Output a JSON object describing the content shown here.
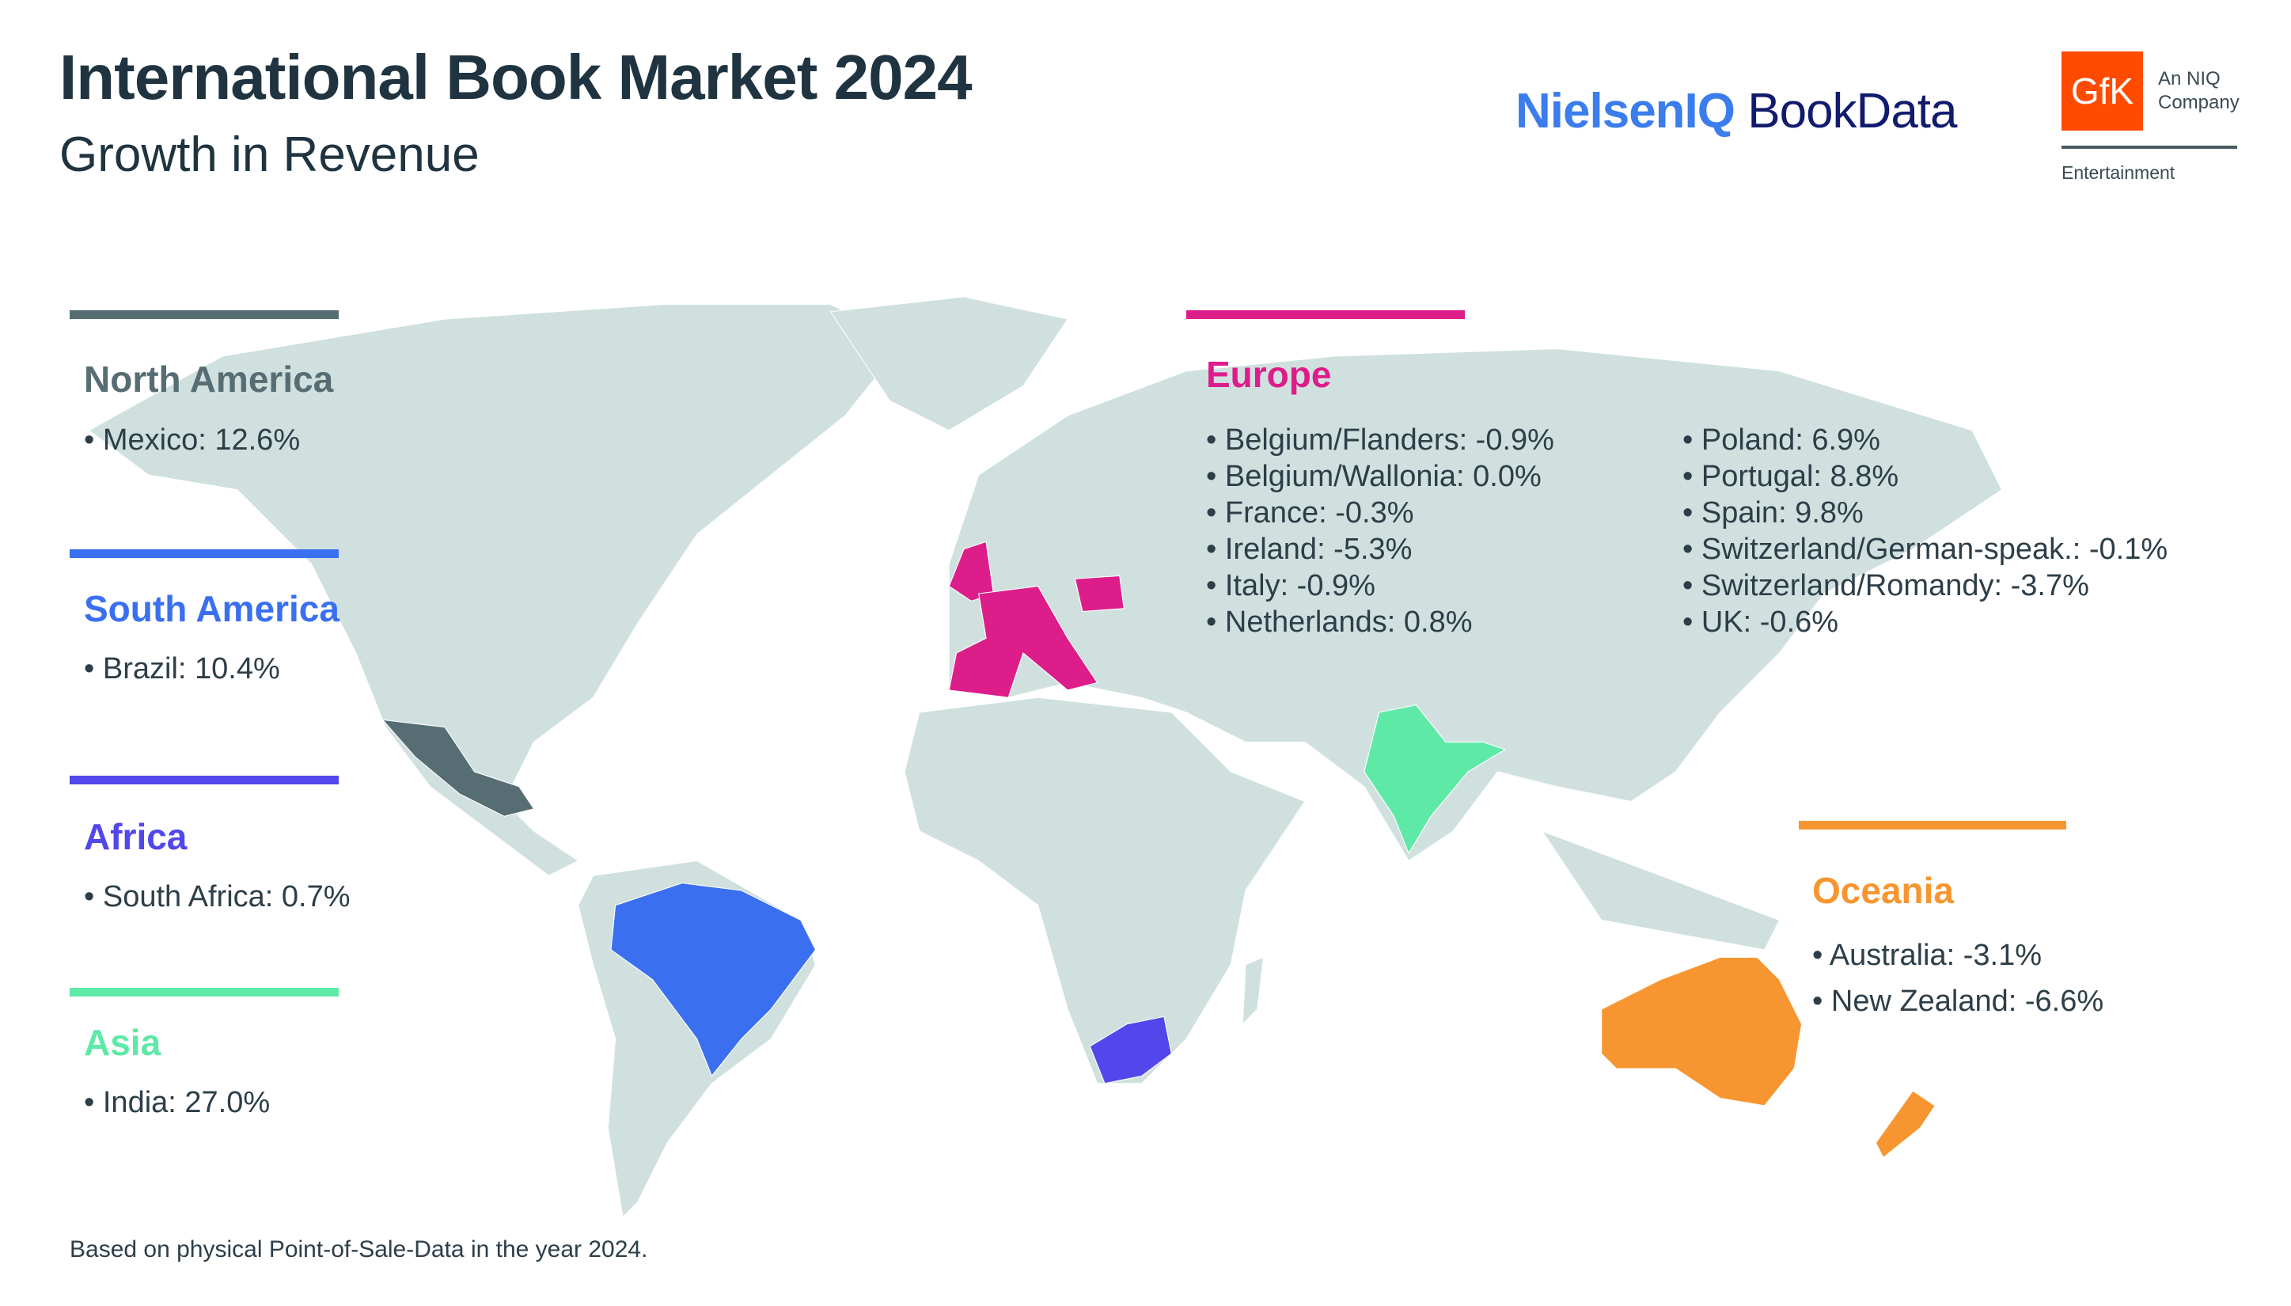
{
  "header": {
    "title": "International Book Market 2024",
    "subtitle": "Growth in Revenue"
  },
  "logos": {
    "nielseniq_part1": "NielsenIQ",
    "nielseniq_part2": "BookData",
    "gfk": "GfK",
    "gfk_tagline_1": "An NIQ",
    "gfk_tagline_2": "Company",
    "gfk_division": "Entertainment"
  },
  "colors": {
    "north_america": "#566d73",
    "south_america": "#3a6ff0",
    "africa": "#5147ea",
    "asia": "#5ee9a6",
    "europe": "#dd1d8a",
    "oceania": "#f79630",
    "land": "#cfe0df"
  },
  "regions": {
    "north_america": {
      "name": "North America",
      "items": [
        "Mexico: 12.6%"
      ]
    },
    "south_america": {
      "name": "South America",
      "items": [
        "Brazil: 10.4%"
      ]
    },
    "africa": {
      "name": "Africa",
      "items": [
        "South Africa: 0.7%"
      ]
    },
    "asia": {
      "name": "Asia",
      "items": [
        "India: 27.0%"
      ]
    },
    "europe": {
      "name": "Europe",
      "items": [
        "Belgium/Flanders: -0.9%",
        "Belgium/Wallonia: 0.0%",
        "France: -0.3%",
        "Ireland: -5.3%",
        "Italy: -0.9%",
        "Netherlands: 0.8%",
        "Poland: 6.9%",
        "Portugal: 8.8%",
        "Spain: 9.8%",
        "Switzerland/German-speak.: -0.1%",
        "Switzerland/Romandy: -3.7%",
        "UK: -0.6%"
      ]
    },
    "oceania": {
      "name": "Oceania",
      "items": [
        "Australia: -3.1%",
        "New Zealand: -6.6%"
      ]
    }
  },
  "footnote": "Based on physical Point-of-Sale-Data in the year 2024."
}
